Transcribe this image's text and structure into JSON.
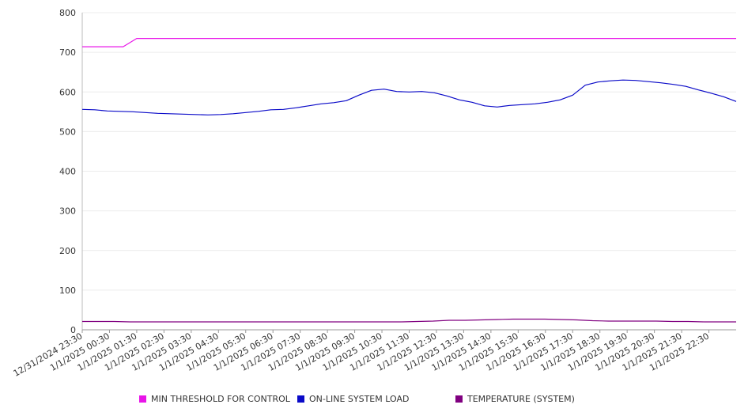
{
  "chart_data": {
    "type": "line",
    "ylim": [
      0,
      800
    ],
    "y_ticks": [
      "0",
      "100",
      "200",
      "300",
      "400",
      "500",
      "600",
      "700",
      "800"
    ],
    "x_labels": [
      "12/31/2024 23:30",
      "1/1/2025 00:30",
      "1/1/2025 01:30",
      "1/1/2025 02:30",
      "1/1/2025 03:30",
      "1/1/2025 04:30",
      "1/1/2025 05:30",
      "1/1/2025 06:30",
      "1/1/2025 07:30",
      "1/1/2025 08:30",
      "1/1/2025 09:30",
      "1/1/2025 10:30",
      "1/1/2025 11:30",
      "1/1/2025 12:30",
      "1/1/2025 13:30",
      "1/1/2025 14:30",
      "1/1/2025 15:30",
      "1/1/2025 16:30",
      "1/1/2025 17:30",
      "1/1/2025 18:30",
      "1/1/2025 19:30",
      "1/1/2025 20:30",
      "1/1/2025 21:30",
      "1/1/2025 22:30"
    ],
    "grid": true,
    "legend_position": "bottom",
    "series": [
      {
        "name": "MIN THRESHOLD FOR CONTROL",
        "color": "#e815e8",
        "values": [
          714,
          714,
          714,
          714,
          735,
          735,
          735,
          735,
          735,
          735,
          735,
          735,
          735,
          735,
          735,
          735,
          735,
          735,
          735,
          735,
          735,
          735,
          735,
          735,
          735,
          735,
          735,
          735,
          735,
          735,
          735,
          735,
          735,
          735,
          735,
          735,
          735,
          735,
          735,
          735,
          735,
          735,
          735,
          735,
          735,
          735,
          735,
          735,
          735
        ]
      },
      {
        "name": "ON-LINE SYSTEM LOAD",
        "color": "#0a0ac8",
        "values": [
          556,
          555,
          552,
          551,
          550,
          548,
          546,
          545,
          544,
          543,
          542,
          543,
          545,
          548,
          551,
          555,
          556,
          560,
          565,
          570,
          573,
          578,
          592,
          604,
          607,
          601,
          600,
          601,
          598,
          590,
          580,
          574,
          565,
          562,
          566,
          568,
          570,
          574,
          580,
          592,
          617,
          625,
          628,
          630,
          629,
          626,
          623,
          619,
          614,
          605,
          597,
          588,
          576
        ]
      },
      {
        "name": "TEMPERATURE (SYSTEM)",
        "color": "#800080",
        "values": [
          21,
          21,
          21,
          20,
          20,
          20,
          20,
          20,
          20,
          20,
          20,
          20,
          20,
          20,
          20,
          20,
          20,
          20,
          20,
          20,
          20,
          21,
          22,
          24,
          24,
          25,
          26,
          27,
          27,
          27,
          26,
          25,
          23,
          22,
          22,
          22,
          22,
          21,
          21,
          20,
          20,
          20
        ]
      }
    ]
  }
}
